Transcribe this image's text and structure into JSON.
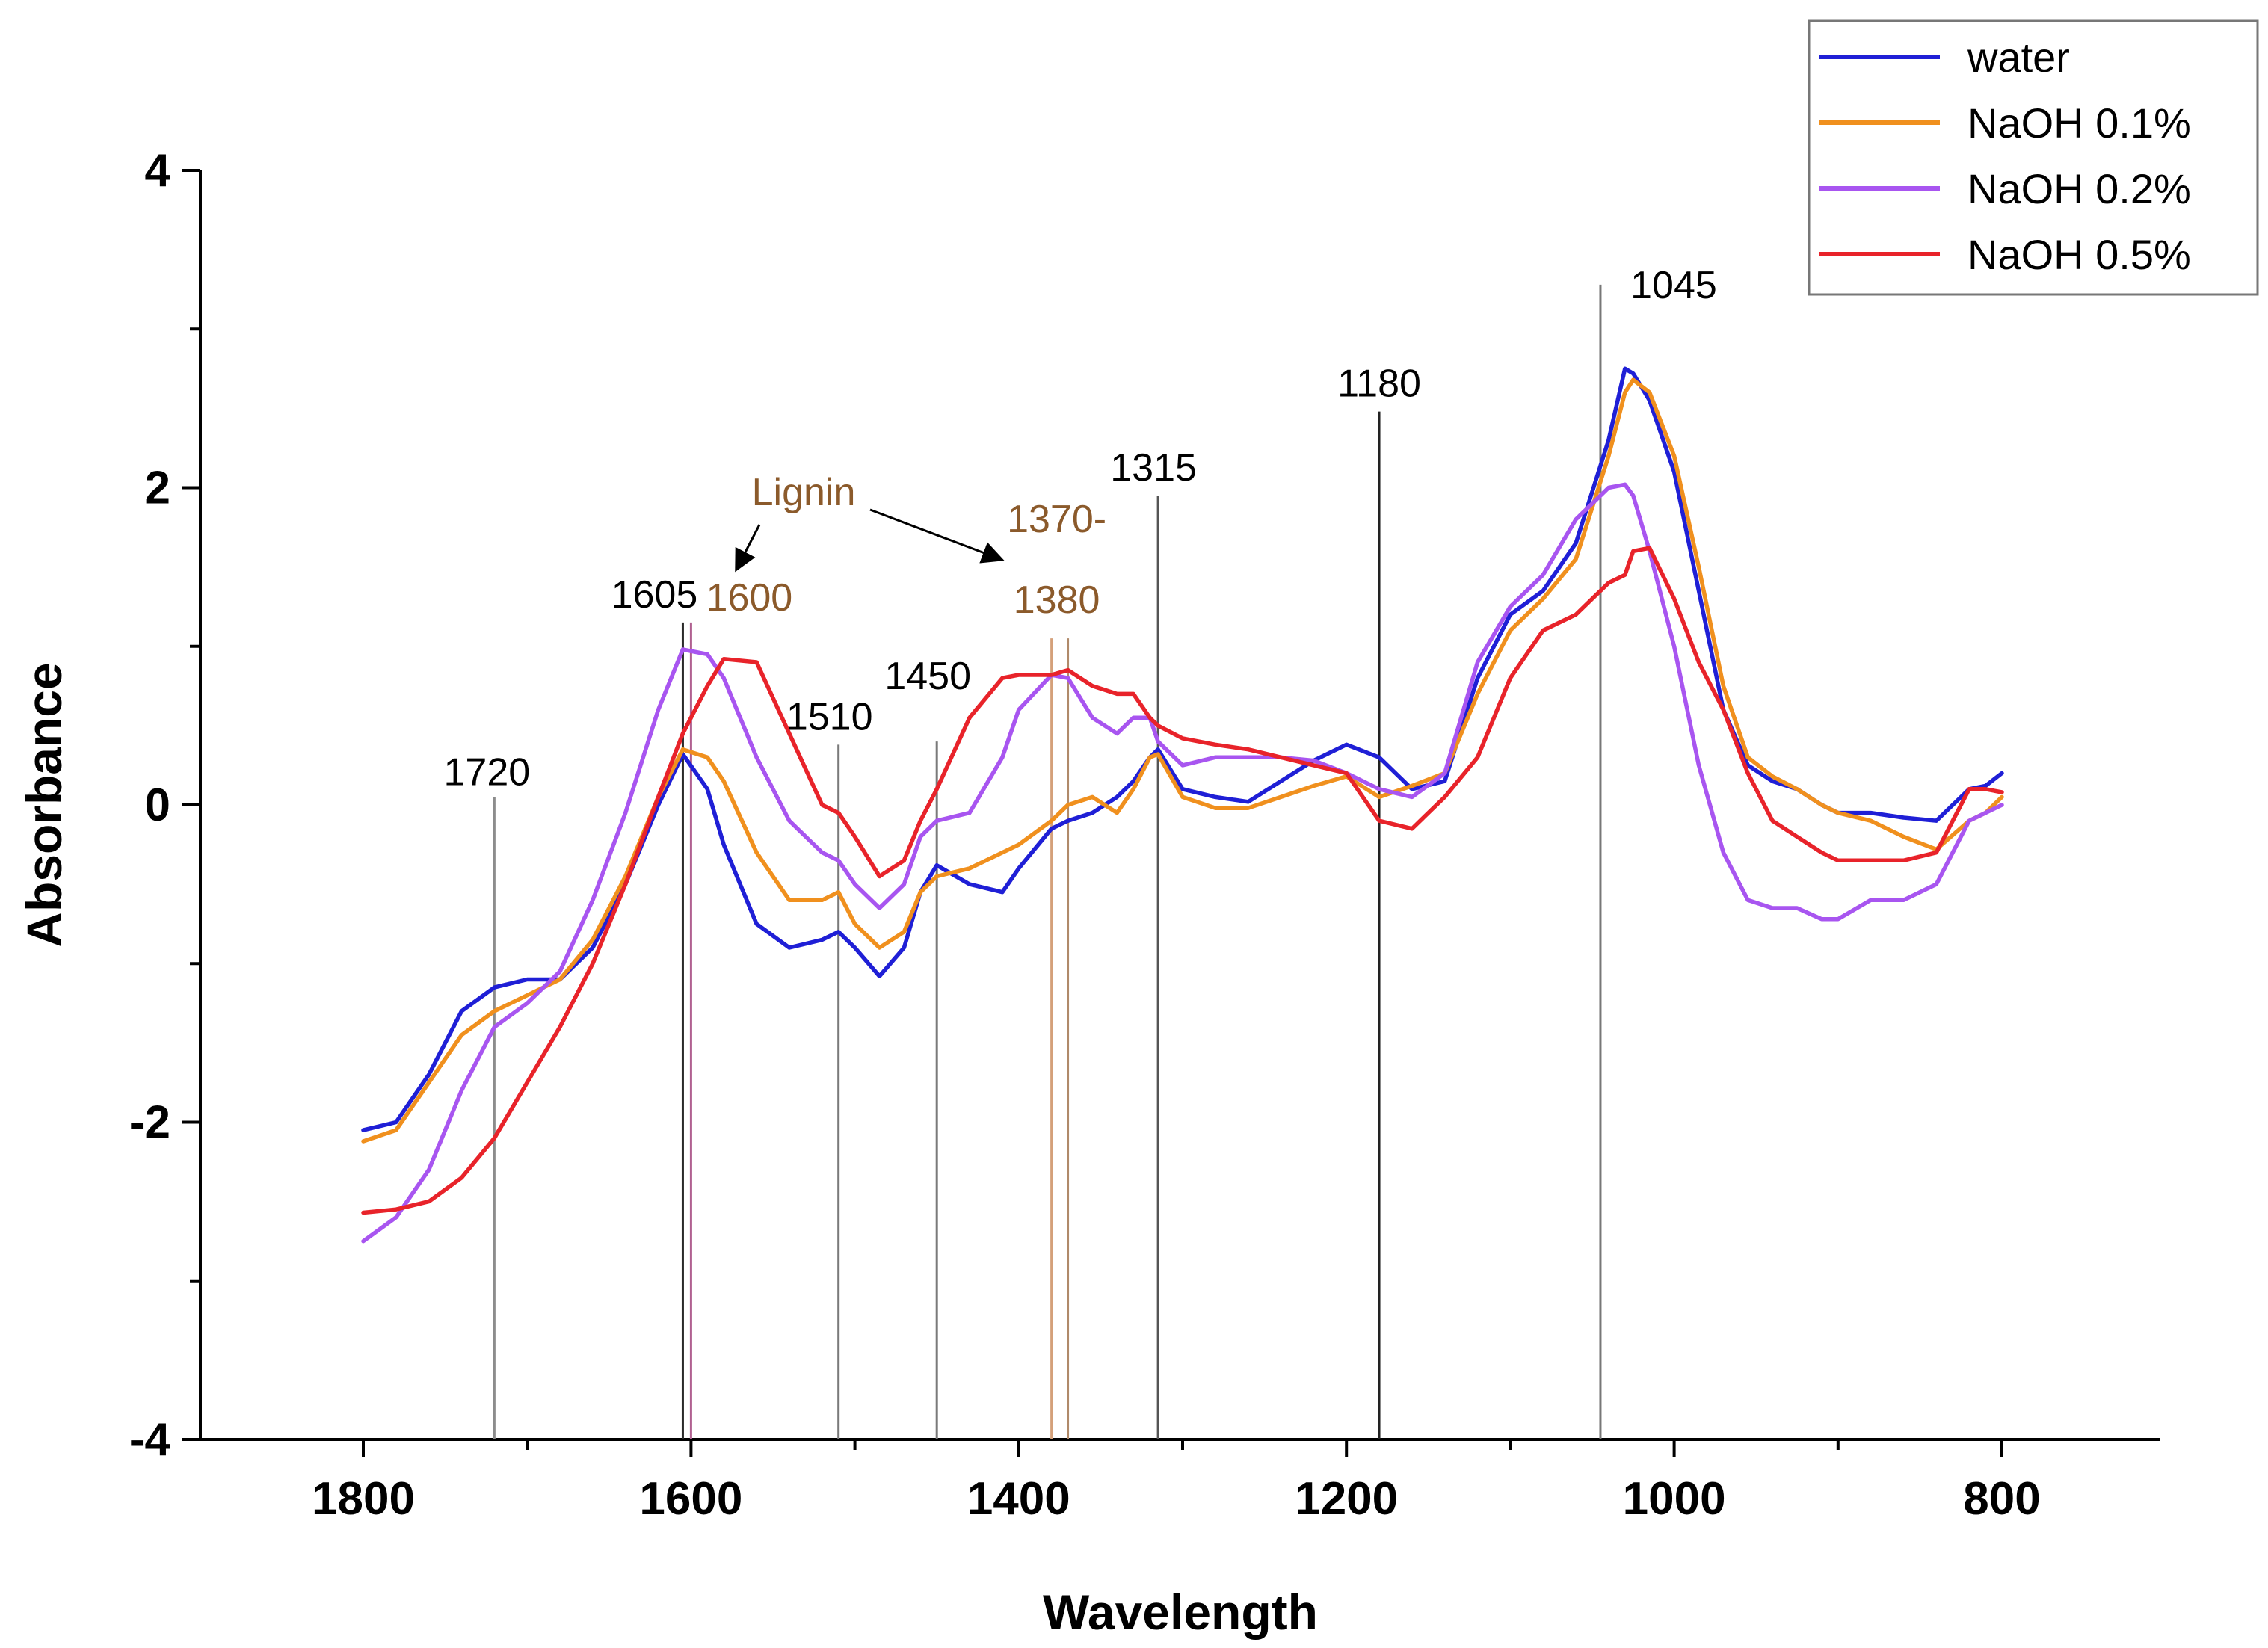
{
  "chart_data": {
    "type": "line",
    "title": "",
    "xlabel": "Wavelength",
    "ylabel": "Absorbance",
    "xlim": [
      1900,
      700
    ],
    "ylim": [
      -4,
      4
    ],
    "x_ticks": [
      "1800",
      "1600",
      "1400",
      "1200",
      "1000",
      "800"
    ],
    "y_ticks": [
      "-4",
      "-2",
      "0",
      "2",
      "4"
    ],
    "legend_position": "top-right",
    "series": [
      {
        "name": "water",
        "color": "#1f1fd6",
        "x": [
          1800,
          1780,
          1760,
          1740,
          1720,
          1700,
          1680,
          1660,
          1640,
          1620,
          1605,
          1590,
          1580,
          1560,
          1540,
          1520,
          1510,
          1500,
          1485,
          1470,
          1460,
          1450,
          1430,
          1410,
          1400,
          1380,
          1370,
          1355,
          1340,
          1330,
          1320,
          1315,
          1300,
          1280,
          1260,
          1240,
          1220,
          1200,
          1180,
          1160,
          1140,
          1120,
          1100,
          1080,
          1060,
          1040,
          1030,
          1025,
          1015,
          1000,
          985,
          970,
          955,
          940,
          925,
          910,
          900,
          880,
          860,
          840,
          820,
          810,
          800
        ],
        "y": [
          -2.05,
          -2.0,
          -1.7,
          -1.3,
          -1.15,
          -1.1,
          -1.1,
          -0.9,
          -0.5,
          0.0,
          0.32,
          0.1,
          -0.25,
          -0.75,
          -0.9,
          -0.85,
          -0.8,
          -0.9,
          -1.08,
          -0.9,
          -0.55,
          -0.38,
          -0.5,
          -0.55,
          -0.4,
          -0.15,
          -0.1,
          -0.05,
          0.05,
          0.15,
          0.3,
          0.35,
          0.1,
          0.05,
          0.02,
          0.15,
          0.28,
          0.38,
          0.3,
          0.1,
          0.15,
          0.8,
          1.2,
          1.35,
          1.65,
          2.3,
          2.75,
          2.72,
          2.55,
          2.1,
          1.35,
          0.6,
          0.25,
          0.15,
          0.1,
          0.0,
          -0.05,
          -0.05,
          -0.08,
          -0.1,
          0.1,
          0.12,
          0.2
        ]
      },
      {
        "name": "NaOH 0.1%",
        "color": "#f0901e",
        "x": [
          1800,
          1780,
          1760,
          1740,
          1720,
          1700,
          1680,
          1660,
          1640,
          1620,
          1605,
          1590,
          1580,
          1560,
          1540,
          1520,
          1510,
          1500,
          1485,
          1470,
          1460,
          1450,
          1430,
          1410,
          1400,
          1380,
          1370,
          1355,
          1340,
          1330,
          1320,
          1315,
          1300,
          1280,
          1260,
          1240,
          1220,
          1200,
          1180,
          1160,
          1140,
          1120,
          1100,
          1080,
          1060,
          1040,
          1030,
          1025,
          1015,
          1000,
          985,
          970,
          955,
          940,
          925,
          910,
          900,
          880,
          860,
          840,
          820,
          810,
          800
        ],
        "y": [
          -2.12,
          -2.05,
          -1.75,
          -1.45,
          -1.3,
          -1.2,
          -1.1,
          -0.85,
          -0.45,
          0.05,
          0.35,
          0.3,
          0.15,
          -0.3,
          -0.6,
          -0.6,
          -0.55,
          -0.75,
          -0.9,
          -0.8,
          -0.55,
          -0.45,
          -0.4,
          -0.3,
          -0.25,
          -0.1,
          0.0,
          0.05,
          -0.05,
          0.1,
          0.3,
          0.32,
          0.05,
          -0.02,
          -0.02,
          0.05,
          0.12,
          0.18,
          0.05,
          0.12,
          0.2,
          0.7,
          1.1,
          1.3,
          1.55,
          2.2,
          2.6,
          2.68,
          2.6,
          2.2,
          1.5,
          0.75,
          0.3,
          0.18,
          0.1,
          0.0,
          -0.05,
          -0.1,
          -0.2,
          -0.28,
          -0.1,
          -0.05,
          0.05
        ]
      },
      {
        "name": "NaOH 0.2%",
        "color": "#a855f0",
        "x": [
          1800,
          1780,
          1760,
          1740,
          1720,
          1700,
          1680,
          1660,
          1640,
          1620,
          1605,
          1590,
          1580,
          1560,
          1540,
          1520,
          1510,
          1500,
          1485,
          1470,
          1460,
          1450,
          1430,
          1410,
          1400,
          1380,
          1370,
          1355,
          1340,
          1330,
          1320,
          1315,
          1300,
          1280,
          1260,
          1240,
          1220,
          1200,
          1180,
          1160,
          1140,
          1120,
          1100,
          1080,
          1060,
          1040,
          1030,
          1025,
          1015,
          1000,
          985,
          970,
          955,
          940,
          925,
          910,
          900,
          880,
          860,
          840,
          820,
          810,
          800
        ],
        "y": [
          -2.75,
          -2.6,
          -2.3,
          -1.8,
          -1.4,
          -1.25,
          -1.05,
          -0.6,
          -0.05,
          0.6,
          0.98,
          0.95,
          0.8,
          0.3,
          -0.1,
          -0.3,
          -0.35,
          -0.5,
          -0.65,
          -0.5,
          -0.2,
          -0.1,
          -0.05,
          0.3,
          0.6,
          0.82,
          0.8,
          0.55,
          0.45,
          0.55,
          0.55,
          0.4,
          0.25,
          0.3,
          0.3,
          0.3,
          0.28,
          0.2,
          0.1,
          0.05,
          0.2,
          0.9,
          1.25,
          1.45,
          1.8,
          2.0,
          2.02,
          1.95,
          1.6,
          1.0,
          0.25,
          -0.3,
          -0.6,
          -0.65,
          -0.65,
          -0.72,
          -0.72,
          -0.6,
          -0.6,
          -0.5,
          -0.1,
          -0.05,
          0.0
        ]
      },
      {
        "name": "NaOH 0.5%",
        "color": "#e8232a",
        "x": [
          1800,
          1780,
          1760,
          1740,
          1720,
          1700,
          1680,
          1660,
          1640,
          1620,
          1605,
          1590,
          1580,
          1560,
          1540,
          1520,
          1510,
          1500,
          1485,
          1470,
          1460,
          1450,
          1430,
          1410,
          1400,
          1380,
          1370,
          1355,
          1340,
          1330,
          1320,
          1315,
          1300,
          1280,
          1260,
          1240,
          1220,
          1200,
          1180,
          1160,
          1140,
          1120,
          1100,
          1080,
          1060,
          1040,
          1030,
          1025,
          1015,
          1000,
          985,
          970,
          955,
          940,
          925,
          910,
          900,
          880,
          860,
          840,
          820,
          810,
          800
        ],
        "y": [
          -2.57,
          -2.55,
          -2.5,
          -2.35,
          -2.1,
          -1.75,
          -1.4,
          -1.0,
          -0.5,
          0.05,
          0.45,
          0.75,
          0.92,
          0.9,
          0.45,
          0.0,
          -0.05,
          -0.2,
          -0.45,
          -0.35,
          -0.1,
          0.1,
          0.55,
          0.8,
          0.82,
          0.82,
          0.85,
          0.75,
          0.7,
          0.7,
          0.55,
          0.5,
          0.42,
          0.38,
          0.35,
          0.3,
          0.25,
          0.2,
          -0.1,
          -0.15,
          0.05,
          0.3,
          0.8,
          1.1,
          1.2,
          1.4,
          1.45,
          1.6,
          1.62,
          1.3,
          0.9,
          0.6,
          0.2,
          -0.1,
          -0.2,
          -0.3,
          -0.35,
          -0.35,
          -0.35,
          -0.3,
          0.1,
          0.1,
          0.08
        ]
      }
    ],
    "peak_markers": [
      {
        "x": 1720,
        "y_top": 0.05,
        "label": "1720",
        "color": "#8c8c8c"
      },
      {
        "x": 1605,
        "y_top": 1.15,
        "label": "1605",
        "color": "#2a2a2a"
      },
      {
        "x": 1600,
        "y_top": 1.15,
        "label": "1600",
        "color": "#b06090"
      },
      {
        "x": 1510,
        "y_top": 0.38,
        "label": "1510",
        "color": "#7a7a7a"
      },
      {
        "x": 1450,
        "y_top": 0.4,
        "label": "1450",
        "color": "#7a7a7a"
      },
      {
        "x": 1380,
        "y_top": 1.05,
        "label": "1370-",
        "label2": "1380",
        "color": "#d4a07a"
      },
      {
        "x": 1370,
        "y_top": 1.05,
        "label": "",
        "color": "#b08a6a"
      },
      {
        "x": 1315,
        "y_top": 1.95,
        "label": "1315",
        "color": "#555555"
      },
      {
        "x": 1180,
        "y_top": 2.48,
        "label": "1180",
        "color": "#222222"
      },
      {
        "x": 1045,
        "y_top": 3.28,
        "label": "1045",
        "color": "#777777"
      }
    ],
    "annotations": [
      {
        "text": "Lignin",
        "color": "#8B5A2B"
      }
    ]
  }
}
